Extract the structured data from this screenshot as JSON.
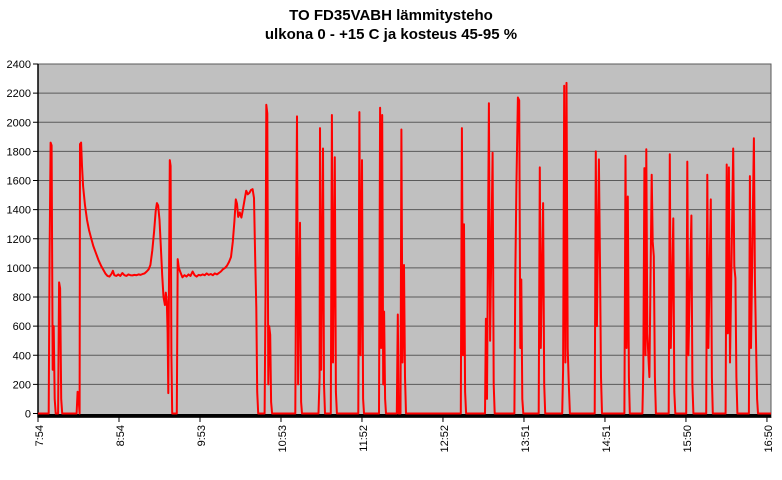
{
  "chart_data": {
    "type": "line",
    "title": "TO FD35VABH lämmitysteho",
    "subtitle": "ulkona 0 - +15 C ja kosteus 45-95 %",
    "series": [
      {
        "name": "lämmitysteho",
        "color": "#FF0000"
      }
    ],
    "legend": "none",
    "grid": true,
    "plot_bg": "#c0c0c0",
    "gridline_color": "#5a5a5a",
    "axis_color": "#000000",
    "ylim": [
      0,
      2400
    ],
    "y_tick_step": 200,
    "y_tick_labels": [
      "0",
      "200",
      "400",
      "600",
      "800",
      "1000",
      "1200",
      "1400",
      "1600",
      "1800",
      "2000",
      "2200",
      "2400"
    ],
    "x_tick_labels": [
      "7:54",
      "8:54",
      "9:53",
      "10:53",
      "11:52",
      "12:52",
      "13:51",
      "14:51",
      "15:50",
      "16:50"
    ],
    "x_label_rotation": -90,
    "x_minutes_per_tick": 60,
    "x_total_minutes": 543,
    "points": [
      [
        0,
        0
      ],
      [
        7.9,
        0
      ],
      [
        8.6,
        1100
      ],
      [
        9.3,
        1860
      ],
      [
        10.1,
        1840
      ],
      [
        10.9,
        300
      ],
      [
        11.6,
        600
      ],
      [
        12.4,
        100
      ],
      [
        13.1,
        0
      ],
      [
        14.9,
        0
      ],
      [
        15.6,
        900
      ],
      [
        16.4,
        860
      ],
      [
        17.2,
        100
      ],
      [
        17.9,
        0
      ],
      [
        28.6,
        0
      ],
      [
        29.3,
        150
      ],
      [
        30.1,
        100
      ],
      [
        30.8,
        0
      ],
      [
        31.1,
        1850
      ],
      [
        31.9,
        1860
      ],
      [
        32.6,
        1700
      ],
      [
        33.4,
        1560
      ],
      [
        34.8,
        1430
      ],
      [
        36.3,
        1330
      ],
      [
        37.8,
        1260
      ],
      [
        39.2,
        1210
      ],
      [
        41,
        1150
      ],
      [
        43,
        1100
      ],
      [
        45,
        1050
      ],
      [
        47,
        1010
      ],
      [
        48.5,
        985
      ],
      [
        50,
        960
      ],
      [
        51.5,
        945
      ],
      [
        53,
        940
      ],
      [
        54.5,
        960
      ],
      [
        55.5,
        980
      ],
      [
        56.5,
        950
      ],
      [
        58,
        945
      ],
      [
        59.5,
        955
      ],
      [
        61,
        945
      ],
      [
        62.5,
        965
      ],
      [
        64,
        950
      ],
      [
        65.5,
        945
      ],
      [
        67,
        955
      ],
      [
        68.5,
        950
      ],
      [
        70,
        948
      ],
      [
        71.5,
        952
      ],
      [
        73,
        950
      ],
      [
        74.5,
        955
      ],
      [
        76,
        952
      ],
      [
        77.5,
        958
      ],
      [
        79,
        962
      ],
      [
        80.5,
        975
      ],
      [
        82,
        990
      ],
      [
        83.3,
        1020
      ],
      [
        84.7,
        1120
      ],
      [
        86,
        1250
      ],
      [
        87.2,
        1390
      ],
      [
        88.1,
        1445
      ],
      [
        89,
        1430
      ],
      [
        90,
        1330
      ],
      [
        91,
        1150
      ],
      [
        92,
        950
      ],
      [
        93,
        800
      ],
      [
        94,
        745
      ],
      [
        94.7,
        830
      ],
      [
        95.4,
        770
      ],
      [
        96,
        560
      ],
      [
        96.5,
        140
      ],
      [
        97.1,
        1020
      ],
      [
        97.6,
        1740
      ],
      [
        98.2,
        1700
      ],
      [
        98.8,
        400
      ],
      [
        99.4,
        0
      ],
      [
        102.8,
        0
      ],
      [
        103.5,
        1060
      ],
      [
        104.3,
        1000
      ],
      [
        105.5,
        970
      ],
      [
        107,
        935
      ],
      [
        108.5,
        950
      ],
      [
        110,
        940
      ],
      [
        111.5,
        955
      ],
      [
        113,
        945
      ],
      [
        114.5,
        975
      ],
      [
        116,
        950
      ],
      [
        117.5,
        940
      ],
      [
        119,
        952
      ],
      [
        120.5,
        948
      ],
      [
        122,
        955
      ],
      [
        123.5,
        950
      ],
      [
        125,
        962
      ],
      [
        126.5,
        952
      ],
      [
        128,
        958
      ],
      [
        129.5,
        950
      ],
      [
        131,
        962
      ],
      [
        132.5,
        955
      ],
      [
        134,
        965
      ],
      [
        135.5,
        975
      ],
      [
        137,
        990
      ],
      [
        138.5,
        1000
      ],
      [
        140,
        1015
      ],
      [
        141.5,
        1040
      ],
      [
        143,
        1075
      ],
      [
        144.3,
        1180
      ],
      [
        145.5,
        1320
      ],
      [
        146.5,
        1470
      ],
      [
        147.4,
        1440
      ],
      [
        148.3,
        1350
      ],
      [
        149.5,
        1380
      ],
      [
        150.7,
        1345
      ],
      [
        151.8,
        1400
      ],
      [
        153,
        1465
      ],
      [
        154.2,
        1530
      ],
      [
        155.4,
        1505
      ],
      [
        156.6,
        1515
      ],
      [
        157.8,
        1535
      ],
      [
        159,
        1540
      ],
      [
        160,
        1480
      ],
      [
        160.9,
        1060
      ],
      [
        161.7,
        730
      ],
      [
        162.4,
        150
      ],
      [
        163.1,
        0
      ],
      [
        167.9,
        0
      ],
      [
        168.5,
        800
      ],
      [
        169.1,
        2120
      ],
      [
        169.9,
        2060
      ],
      [
        170.6,
        200
      ],
      [
        171.3,
        600
      ],
      [
        172,
        540
      ],
      [
        172.7,
        80
      ],
      [
        173.4,
        0
      ],
      [
        190.6,
        0
      ],
      [
        191.4,
        1450
      ],
      [
        191.9,
        2040
      ],
      [
        192.7,
        200
      ],
      [
        194.1,
        1310
      ],
      [
        194.9,
        80
      ],
      [
        195.6,
        0
      ],
      [
        207.8,
        0
      ],
      [
        208.6,
        250
      ],
      [
        208.9,
        1960
      ],
      [
        209.8,
        300
      ],
      [
        211.1,
        1820
      ],
      [
        211.9,
        200
      ],
      [
        212.6,
        0
      ],
      [
        216.9,
        0
      ],
      [
        217.7,
        2050
      ],
      [
        218.5,
        350
      ],
      [
        219.9,
        1760
      ],
      [
        220.7,
        150
      ],
      [
        221.4,
        0
      ],
      [
        237.3,
        0
      ],
      [
        238.1,
        2070
      ],
      [
        238.9,
        400
      ],
      [
        240,
        1740
      ],
      [
        240.8,
        100
      ],
      [
        241.5,
        0
      ],
      [
        252.6,
        0
      ],
      [
        253.4,
        2100
      ],
      [
        254.2,
        450
      ],
      [
        255,
        2050
      ],
      [
        255.7,
        200
      ],
      [
        256.4,
        700
      ],
      [
        257.1,
        100
      ],
      [
        257.8,
        0
      ],
      [
        265.8,
        0
      ],
      [
        266.5,
        680
      ],
      [
        267.2,
        0
      ],
      [
        268.5,
        0
      ],
      [
        269.2,
        1950
      ],
      [
        270,
        350
      ],
      [
        271.1,
        1020
      ],
      [
        271.9,
        250
      ],
      [
        272.6,
        0
      ],
      [
        313.2,
        0
      ],
      [
        314,
        1960
      ],
      [
        314.8,
        400
      ],
      [
        315.6,
        1300
      ],
      [
        316.4,
        150
      ],
      [
        317.1,
        0
      ],
      [
        331.1,
        0
      ],
      [
        331.8,
        650
      ],
      [
        332.6,
        100
      ],
      [
        334,
        2130
      ],
      [
        334.9,
        500
      ],
      [
        336.8,
        1790
      ],
      [
        337.6,
        200
      ],
      [
        338.3,
        0
      ],
      [
        352.9,
        0
      ],
      [
        353.6,
        950
      ],
      [
        354.4,
        1560
      ],
      [
        355.5,
        2170
      ],
      [
        356.5,
        2150
      ],
      [
        357.3,
        450
      ],
      [
        358,
        920
      ],
      [
        358.8,
        100
      ],
      [
        359.5,
        0
      ],
      [
        370.9,
        0
      ],
      [
        371.7,
        1690
      ],
      [
        372.5,
        450
      ],
      [
        374.2,
        1445
      ],
      [
        375,
        200
      ],
      [
        375.7,
        0
      ],
      [
        388.3,
        0
      ],
      [
        389,
        300
      ],
      [
        389.8,
        2250
      ],
      [
        390.7,
        350
      ],
      [
        391.5,
        2270
      ],
      [
        392.4,
        450
      ],
      [
        393.2,
        200
      ],
      [
        394,
        0
      ],
      [
        412.4,
        0
      ],
      [
        413.2,
        1800
      ],
      [
        414,
        600
      ],
      [
        415.5,
        1745
      ],
      [
        416.3,
        1020
      ],
      [
        417.1,
        250
      ],
      [
        417.8,
        0
      ],
      [
        434.4,
        0
      ],
      [
        435.2,
        1770
      ],
      [
        436,
        450
      ],
      [
        436.9,
        1490
      ],
      [
        437.7,
        250
      ],
      [
        438.4,
        0
      ],
      [
        447.7,
        0
      ],
      [
        448.4,
        300
      ],
      [
        449.2,
        1685
      ],
      [
        450,
        400
      ],
      [
        450.6,
        1815
      ],
      [
        451.4,
        550
      ],
      [
        452.9,
        250
      ],
      [
        454.6,
        1640
      ],
      [
        455.4,
        1180
      ],
      [
        456.2,
        1080
      ],
      [
        457,
        250
      ],
      [
        457.7,
        0
      ],
      [
        467.2,
        0
      ],
      [
        468,
        1780
      ],
      [
        468.8,
        450
      ],
      [
        470.6,
        1340
      ],
      [
        471.4,
        150
      ],
      [
        472.1,
        0
      ],
      [
        480.2,
        0
      ],
      [
        481,
        1730
      ],
      [
        481.8,
        400
      ],
      [
        484,
        1360
      ],
      [
        484.8,
        200
      ],
      [
        485.5,
        0
      ],
      [
        495,
        0
      ],
      [
        495.8,
        1640
      ],
      [
        496.6,
        450
      ],
      [
        498.4,
        1470
      ],
      [
        499.2,
        250
      ],
      [
        499.9,
        0
      ],
      [
        509.4,
        0
      ],
      [
        510.2,
        1710
      ],
      [
        511,
        550
      ],
      [
        511.8,
        1690
      ],
      [
        512.6,
        350
      ],
      [
        515,
        1820
      ],
      [
        515.8,
        1010
      ],
      [
        516.6,
        930
      ],
      [
        517.4,
        250
      ],
      [
        518.1,
        0
      ],
      [
        526.6,
        0
      ],
      [
        527.4,
        1630
      ],
      [
        528.2,
        450
      ],
      [
        530.3,
        1890
      ],
      [
        531.1,
        930
      ],
      [
        531.9,
        500
      ],
      [
        532.7,
        100
      ],
      [
        533.4,
        0
      ],
      [
        543,
        0
      ]
    ]
  }
}
